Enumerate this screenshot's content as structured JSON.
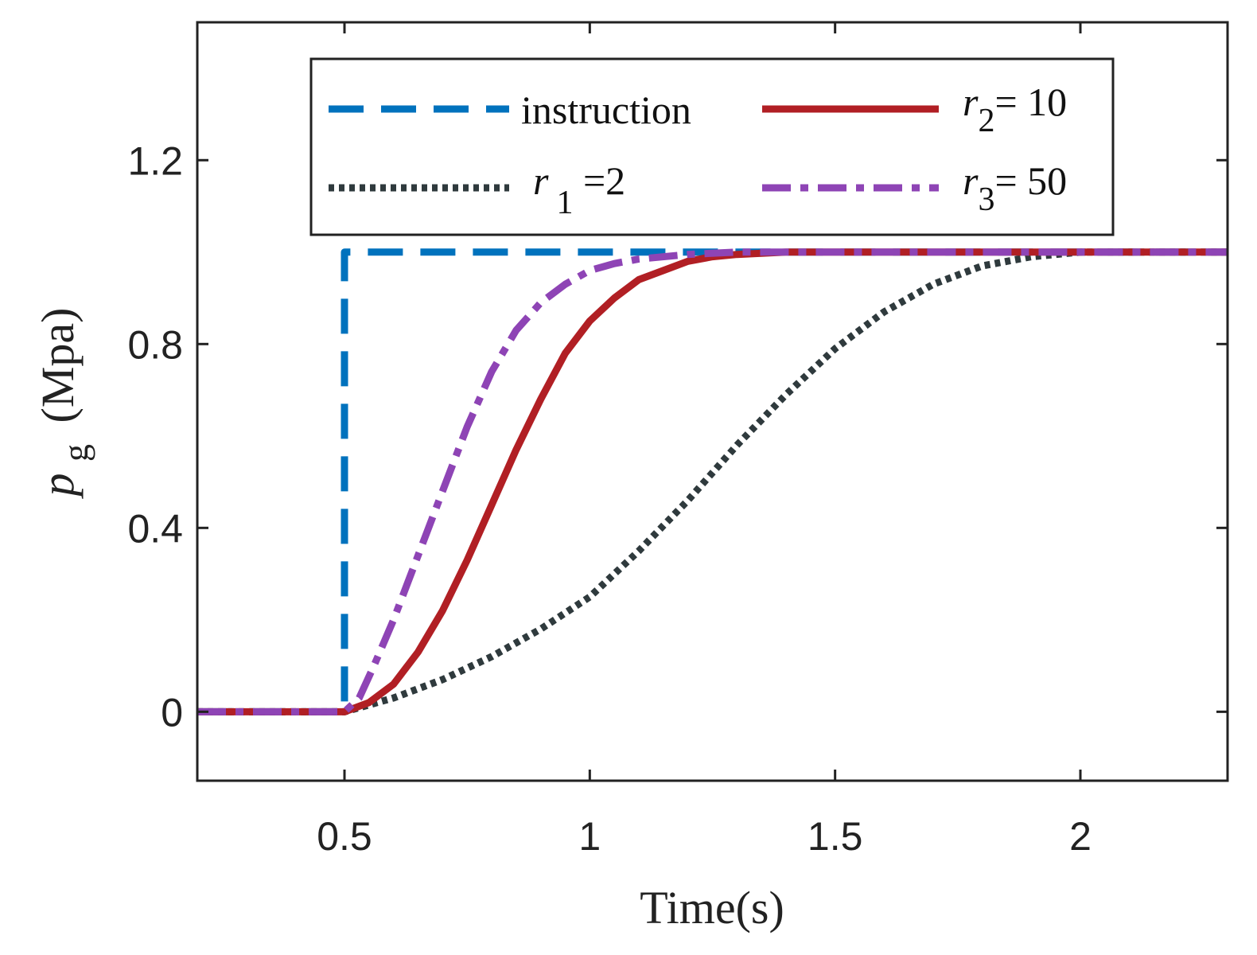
{
  "chart_data": {
    "type": "line",
    "title": "",
    "xlabel": "Time(s)",
    "ylabel": {
      "main": "p",
      "subscript": "g",
      "unit": "(Mpa)"
    },
    "xlim": [
      0.2,
      2.3
    ],
    "ylim": [
      -0.15,
      1.5
    ],
    "xticks": [
      0.5,
      1,
      1.5,
      2
    ],
    "xtick_labels": [
      "0.5",
      "1",
      "1.5",
      "2"
    ],
    "yticks": [
      0,
      0.4,
      0.8,
      1.2
    ],
    "ytick_labels": [
      "0",
      "0.4",
      "0.8",
      "1.2"
    ],
    "grid": false,
    "legend_position": "top",
    "series": [
      {
        "id": "instruction",
        "name": "instruction",
        "color": "#0072BD",
        "style": "dashed",
        "x": [
          0.2,
          0.5,
          0.5,
          2.3
        ],
        "y": [
          0,
          0,
          1.0,
          1.0
        ]
      },
      {
        "id": "r1",
        "name": "r1 =2",
        "label_main": "r",
        "label_sub": "1",
        "label_rest": " =2",
        "color": "#2F3A3D",
        "style": "dotted",
        "x": [
          0.2,
          0.5,
          0.6,
          0.7,
          0.8,
          0.9,
          1.0,
          1.1,
          1.2,
          1.3,
          1.4,
          1.5,
          1.6,
          1.7,
          1.8,
          1.9,
          2.0,
          2.1,
          2.2,
          2.3
        ],
        "y": [
          0,
          0,
          0.03,
          0.07,
          0.12,
          0.18,
          0.25,
          0.35,
          0.46,
          0.58,
          0.69,
          0.79,
          0.87,
          0.93,
          0.97,
          0.99,
          1.0,
          1.0,
          1.0,
          1.0
        ]
      },
      {
        "id": "r2",
        "name": "r2= 10",
        "label_main": "r",
        "label_sub": "2",
        "label_rest": "= 10",
        "color": "#B11F24",
        "style": "solid",
        "x": [
          0.2,
          0.5,
          0.55,
          0.6,
          0.65,
          0.7,
          0.75,
          0.8,
          0.85,
          0.9,
          0.95,
          1.0,
          1.05,
          1.1,
          1.15,
          1.2,
          1.25,
          1.3,
          1.4,
          1.5,
          2.3
        ],
        "y": [
          0,
          0,
          0.02,
          0.06,
          0.13,
          0.22,
          0.33,
          0.45,
          0.57,
          0.68,
          0.78,
          0.85,
          0.9,
          0.94,
          0.96,
          0.98,
          0.99,
          0.995,
          1.0,
          1.0,
          1.0
        ]
      },
      {
        "id": "r3",
        "name": "r3= 50",
        "label_main": "r",
        "label_sub": "3",
        "label_rest": "= 50",
        "color": "#8E44B5",
        "style": "dashdot",
        "x": [
          0.2,
          0.5,
          0.53,
          0.56,
          0.6,
          0.65,
          0.7,
          0.75,
          0.8,
          0.85,
          0.9,
          0.95,
          1.0,
          1.05,
          1.1,
          1.2,
          1.3,
          1.4,
          2.3
        ],
        "y": [
          0,
          0,
          0.03,
          0.1,
          0.2,
          0.34,
          0.48,
          0.62,
          0.74,
          0.83,
          0.89,
          0.93,
          0.96,
          0.975,
          0.985,
          0.995,
          1.0,
          1.0,
          1.0
        ]
      }
    ]
  }
}
